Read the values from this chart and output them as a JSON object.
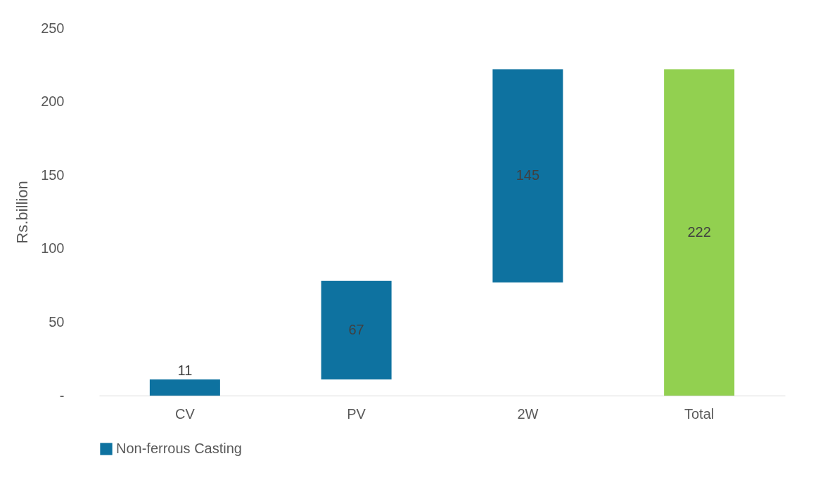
{
  "chart_data": {
    "type": "bar",
    "ylabel": "Rs.billion",
    "categories": [
      "CV",
      "PV",
      "2W",
      "Total"
    ],
    "series": [
      {
        "name": "Non-ferrous Casting",
        "color": "#0e72a0",
        "values": [
          11,
          67,
          145,
          null
        ],
        "base": [
          0,
          11,
          77,
          null
        ]
      },
      {
        "color": "#92d050",
        "values": [
          null,
          null,
          null,
          222
        ],
        "base": [
          null,
          null,
          null,
          0
        ]
      }
    ],
    "ylim": [
      0,
      250
    ],
    "yticks": [
      {
        "value": 0,
        "label": "-"
      },
      50,
      100,
      150,
      200,
      250
    ],
    "data_labels": true,
    "grid": false,
    "legend": "bottom"
  }
}
